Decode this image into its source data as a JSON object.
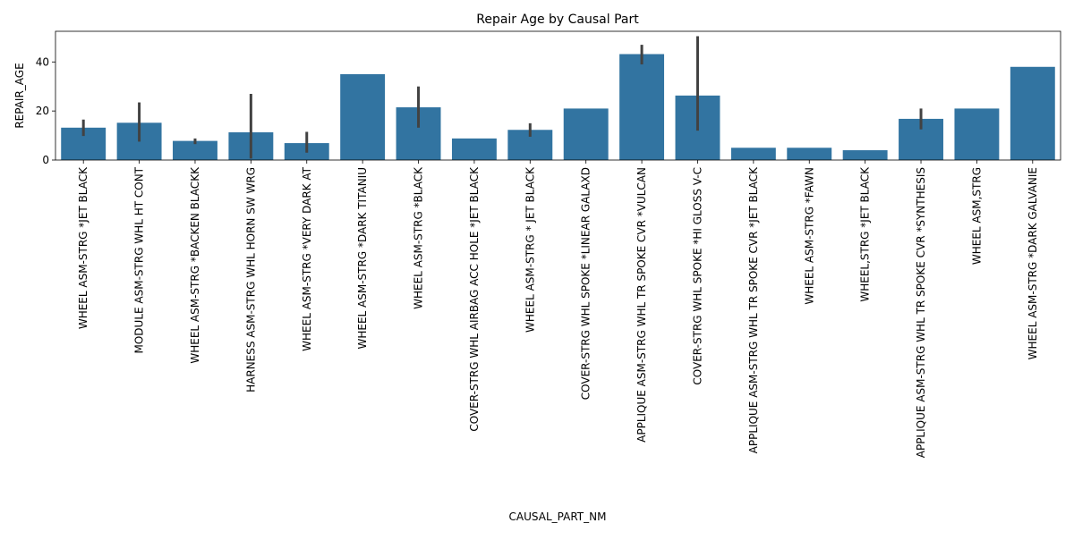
{
  "chart_data": {
    "type": "bar",
    "title": "Repair Age by Causal Part",
    "xlabel": "CAUSAL_PART_NM",
    "ylabel": "REPAIR_AGE",
    "ylim": [
      0,
      52.5
    ],
    "yticks": [
      0,
      20,
      40
    ],
    "grid": false,
    "legend": "none",
    "bar_color": "#3274a1",
    "errorbar_color": "#424242",
    "categories": [
      "WHEEL ASM-STRG *JET BLACK",
      "MODULE ASM-STRG WHL HT CONT",
      "WHEEL ASM-STRG *BACKEN BLACKK",
      "HARNESS ASM-STRG WHL HORN SW WRG",
      "WHEEL ASM-STRG *VERY DARK AT",
      "WHEEL ASM-STRG *DARK TITANIU",
      "WHEEL ASM-STRG *BLACK",
      "COVER-STRG WHL AIRBAG ACC HOLE *JET BLACK",
      "WHEEL ASM-STRG * JET BLACK",
      "COVER-STRG WHL SPOKE *LINEAR GALAXD",
      "APPLIQUE ASM-STRG WHL TR SPOKE CVR *VULCAN",
      "COVER-STRG WHL SPOKE *HI GLOSS V-C",
      "APPLIQUE ASM-STRG WHL TR SPOKE CVR *JET BLACK",
      "WHEEL ASM-STRG *FAWN",
      "WHEEL,STRG *JET BLACK",
      "APPLIQUE ASM-STRG WHL TR SPOKE CVR *SYNTHESIS",
      "WHEEL ASM,STRG",
      "WHEEL ASM-STRG *DARK GALVANIE"
    ],
    "values": [
      13.2,
      15.2,
      7.8,
      11.3,
      6.9,
      35.0,
      21.5,
      8.8,
      12.3,
      21.0,
      43.2,
      26.3,
      5.0,
      5.0,
      4.0,
      16.8,
      21.0,
      38.0
    ],
    "error_low": [
      9.8,
      7.5,
      6.5,
      0.6,
      3.0,
      null,
      13.2,
      null,
      9.5,
      null,
      39.0,
      12.0,
      null,
      null,
      null,
      12.5,
      null,
      null
    ],
    "error_high": [
      16.5,
      23.5,
      8.8,
      27.0,
      11.5,
      null,
      30.0,
      null,
      15.0,
      null,
      47.0,
      50.5,
      null,
      null,
      null,
      21.0,
      null,
      null
    ]
  }
}
